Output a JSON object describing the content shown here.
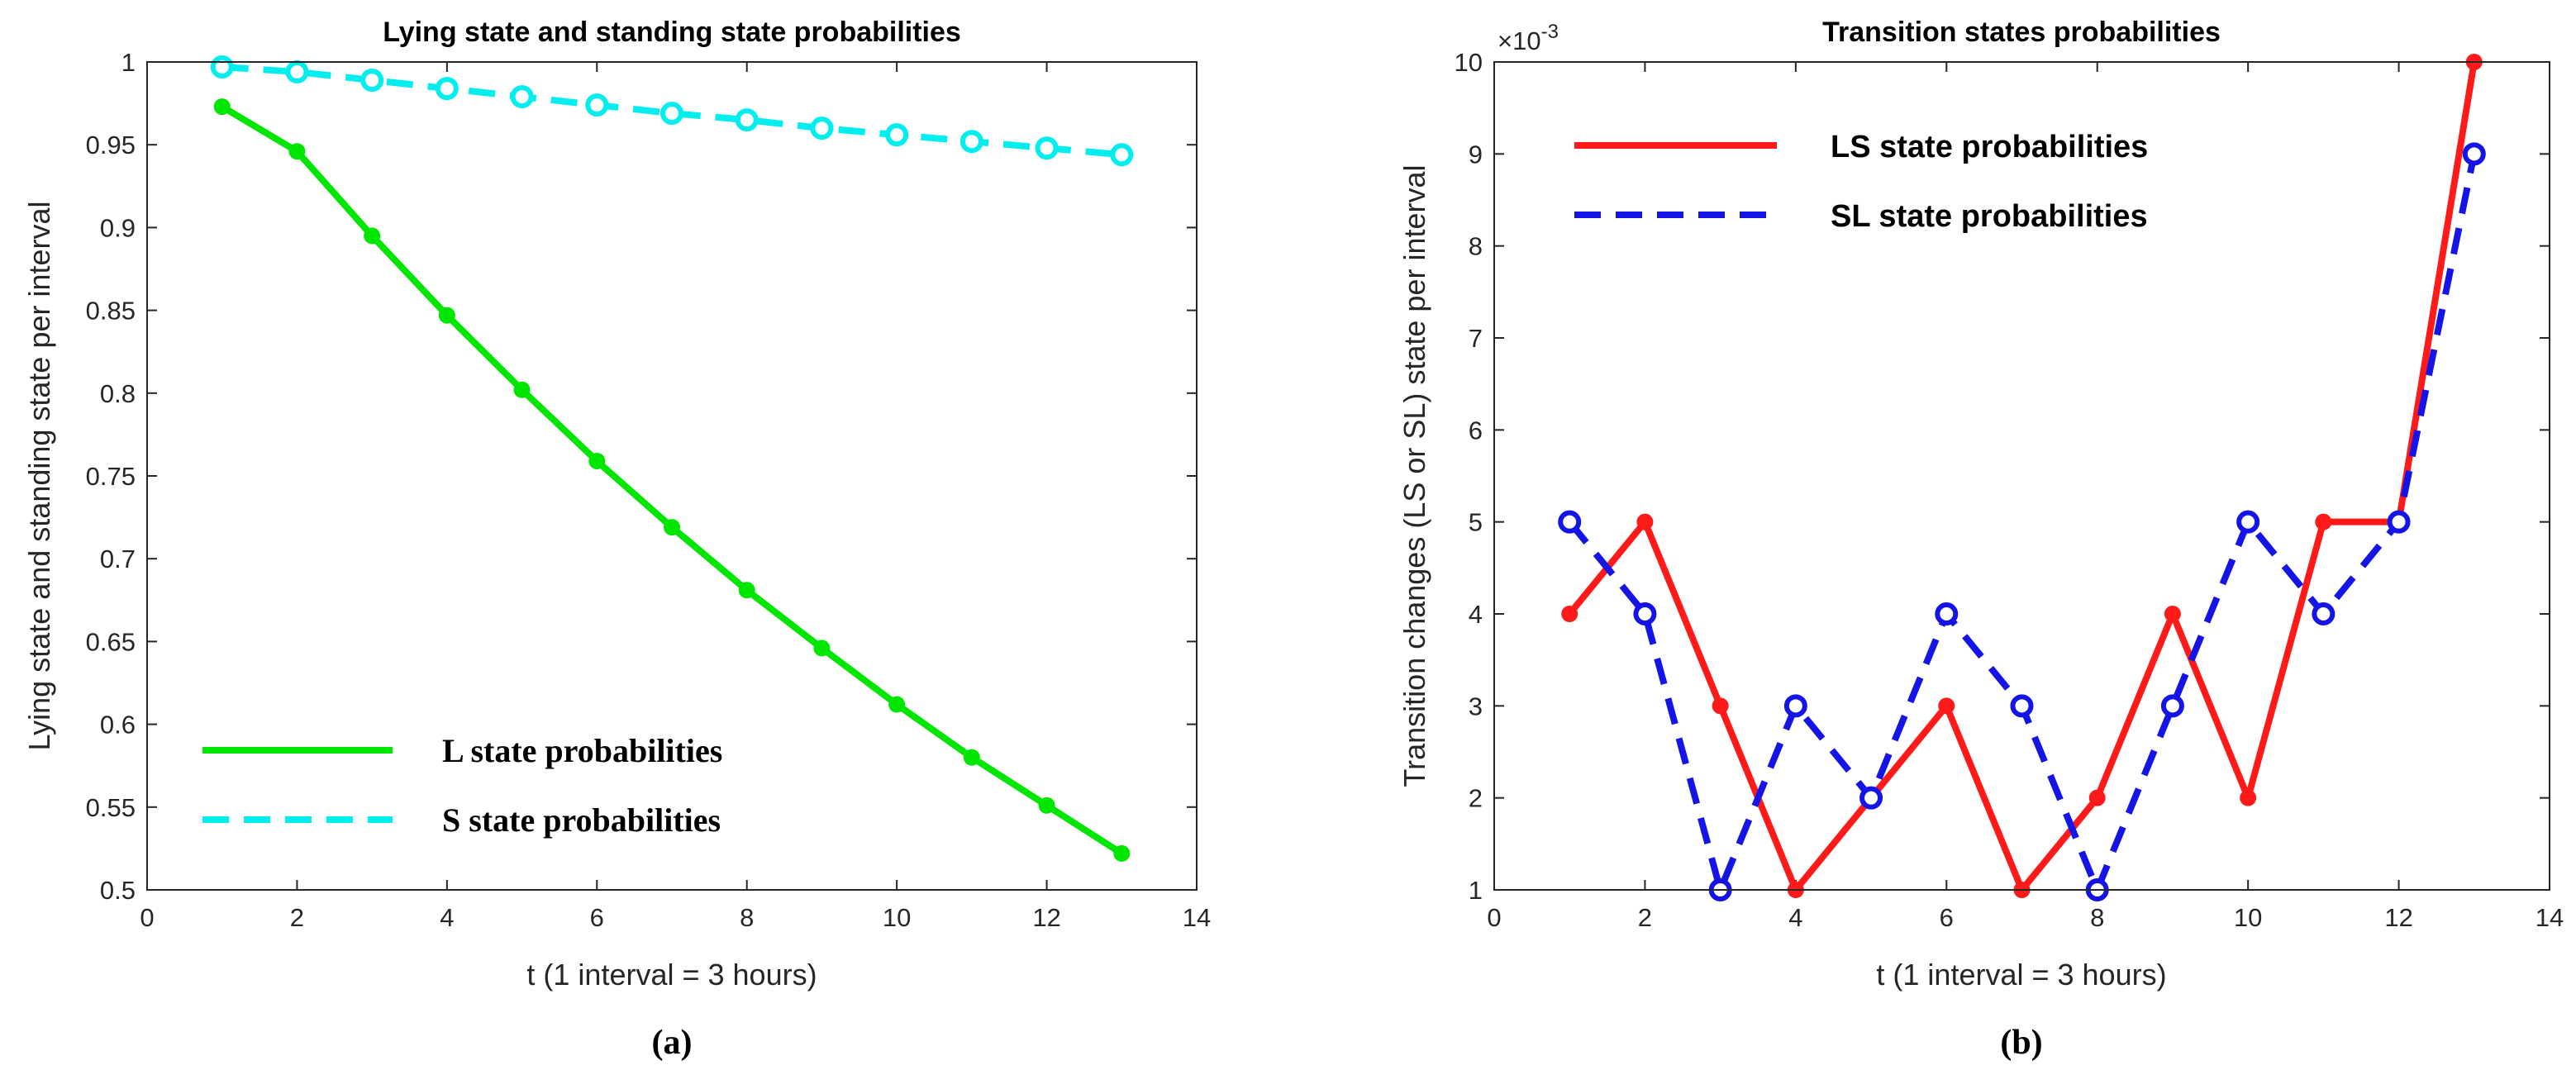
{
  "colors": {
    "title": "#1414e6",
    "axis": "#262626",
    "L": "#00e600",
    "S": "#00eeee",
    "LS": "#ff1a1a",
    "SL": "#1414e6"
  },
  "chart_data": [
    {
      "type": "line",
      "panel_label": "(a)",
      "title": "Lying state and standing state probabilities",
      "xlabel": "t (1 interval = 3 hours)",
      "ylabel": "Lying state and standing state per interval",
      "xlim": [
        0,
        14
      ],
      "ylim": [
        0.5,
        1
      ],
      "xticks": [
        "0",
        "2",
        "4",
        "6",
        "8",
        "10",
        "12",
        "14"
      ],
      "yticks": [
        "0.5",
        "0.55",
        "0.6",
        "0.65",
        "0.7",
        "0.75",
        "0.8",
        "0.85",
        "0.9",
        "0.95",
        "1"
      ],
      "legend_position": "bottom-left",
      "x": [
        1,
        2,
        3,
        4,
        5,
        6,
        7,
        8,
        9,
        10,
        11,
        12,
        13
      ],
      "series": [
        {
          "name": "L state probabilities",
          "style": "solid",
          "marker": "dot",
          "values": [
            0.973,
            0.946,
            0.895,
            0.847,
            0.802,
            0.759,
            0.719,
            0.681,
            0.646,
            0.612,
            0.58,
            0.551,
            0.522
          ]
        },
        {
          "name": "S state probabilities",
          "style": "dashed",
          "marker": "circle",
          "values": [
            0.997,
            0.994,
            0.989,
            0.984,
            0.979,
            0.974,
            0.969,
            0.965,
            0.96,
            0.956,
            0.952,
            0.948,
            0.944
          ]
        }
      ]
    },
    {
      "type": "line",
      "panel_label": "(b)",
      "title": "Transition states probabilities",
      "xlabel": "t (1 interval = 3 hours)",
      "ylabel": "Transition changes (LS or SL) state per interval",
      "xlim": [
        0,
        14
      ],
      "ylim": [
        1,
        10
      ],
      "y_scale_label": "×10",
      "y_scale_exponent": "-3",
      "xticks": [
        "0",
        "2",
        "4",
        "6",
        "8",
        "10",
        "12",
        "14"
      ],
      "yticks": [
        "1",
        "2",
        "3",
        "4",
        "5",
        "6",
        "7",
        "8",
        "9",
        "10"
      ],
      "legend_position": "top-left",
      "x": [
        1,
        2,
        3,
        4,
        5,
        6,
        7,
        8,
        9,
        10,
        11,
        12,
        13
      ],
      "series": [
        {
          "name": "LS state probabilities",
          "style": "solid",
          "marker": "dot",
          "values": [
            4,
            5,
            3,
            1,
            2,
            3,
            1,
            2,
            4,
            2,
            5,
            5,
            10
          ]
        },
        {
          "name": "SL state probabilities",
          "style": "dashed",
          "marker": "circle",
          "values": [
            5,
            4,
            1,
            3,
            2,
            4,
            3,
            1,
            3,
            5,
            4,
            5,
            9
          ]
        }
      ]
    }
  ]
}
